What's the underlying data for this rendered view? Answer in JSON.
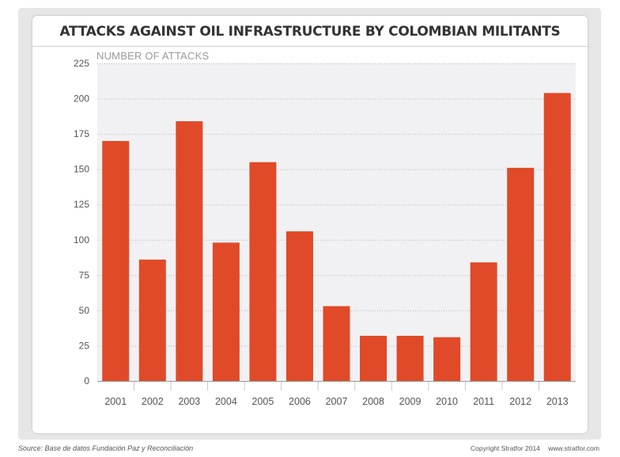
{
  "chart_data": {
    "type": "bar",
    "title": "ATTACKS AGAINST OIL INFRASTRUCTURE BY COLOMBIAN MILITANTS",
    "ylabel": "NUMBER OF ATTACKS",
    "xlabel": "",
    "categories": [
      "2001",
      "2002",
      "2003",
      "2004",
      "2005",
      "2006",
      "2007",
      "2008",
      "2009",
      "2010",
      "2011",
      "2012",
      "2013"
    ],
    "values": [
      170,
      86,
      184,
      98,
      155,
      106,
      53,
      32,
      32,
      31,
      84,
      151,
      204
    ],
    "ylim": [
      0,
      225
    ],
    "yticks": [
      0,
      25,
      50,
      75,
      100,
      125,
      150,
      175,
      200,
      225
    ],
    "grid": true,
    "bar_color": "#e04a28"
  },
  "footer": {
    "source": "Source: Base de datos Fundación Paz y Reconciliación",
    "copyright": "Copyright Stratfor 2014",
    "website": "www.stratfor.com"
  }
}
